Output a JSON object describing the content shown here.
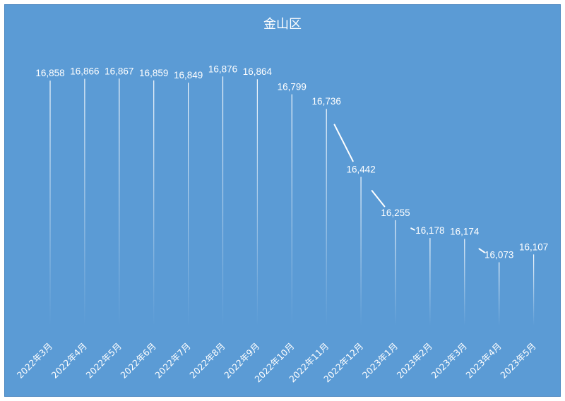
{
  "chart_data": {
    "type": "line",
    "title": "金山区",
    "xlabel": "",
    "ylabel": "",
    "categories": [
      "2022年3月",
      "2022年4月",
      "2022年5月",
      "2022年6月",
      "2022年7月",
      "2022年8月",
      "2022年9月",
      "2022年10月",
      "2022年11月",
      "2022年12月",
      "2023年1月",
      "2023年2月",
      "2023年3月",
      "2023年4月",
      "2023年5月"
    ],
    "series": [
      {
        "values": [
          16858,
          16866,
          16867,
          16859,
          16849,
          16876,
          16864,
          16799,
          16736,
          16442,
          16255,
          16178,
          16174,
          16073,
          16107
        ]
      }
    ],
    "ylim": [
      15800,
      16880
    ],
    "grid": false,
    "legend": "none",
    "drop_lines": true,
    "data_labels": [
      "16,858",
      "16,866",
      "16,867",
      "16,859",
      "16,849",
      "16,876",
      "16,864",
      "16,799",
      "16,736",
      "16,442",
      "16,255",
      "16,178",
      "16,174",
      "16,073",
      "16,107"
    ],
    "colors": {
      "background": "#5b9bd5",
      "line": "#ffffff",
      "text": "#ffffff"
    }
  }
}
